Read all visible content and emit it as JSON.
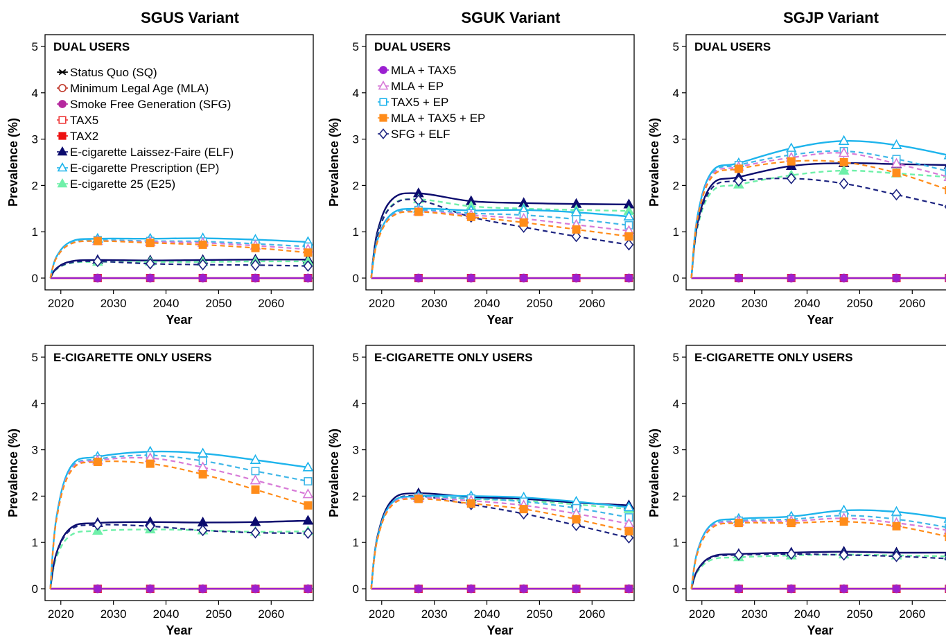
{
  "figure": {
    "column_titles": [
      "SGUS Variant",
      "SGUK Variant",
      "SGJP Variant"
    ],
    "row_labels": [
      "DUAL USERS",
      "E-CIGARETTE ONLY USERS"
    ],
    "xlabel": "Year",
    "ylabel": "Prevalence (%)"
  },
  "legends": {
    "left": [
      {
        "name": "Status Quo (SQ)",
        "color": "#000000",
        "marker": "x"
      },
      {
        "name": "Minimum Legal Age (MLA)",
        "color": "#c0392b",
        "marker": "circle-open"
      },
      {
        "name": "Smoke Free Generation (SFG)",
        "color": "#b5289e",
        "marker": "circle"
      },
      {
        "name": "TAX5",
        "color": "#ee3b3b",
        "marker": "square-open"
      },
      {
        "name": "TAX2",
        "color": "#ee1111",
        "marker": "square"
      },
      {
        "name": "E-cigarette Laissez-Faire (ELF)",
        "color": "#0b0b6e",
        "marker": "triangle"
      },
      {
        "name": "E-cigarette Prescription (EP)",
        "color": "#1eb4ec",
        "marker": "triangle-open"
      },
      {
        "name": "E-cigarette 25 (E25)",
        "color": "#6ff0a9",
        "marker": "triangle"
      }
    ],
    "middle": [
      {
        "name": "MLA + TAX5",
        "color": "#9b1fd1",
        "marker": "circle"
      },
      {
        "name": "MLA + EP",
        "color": "#d77ad7",
        "marker": "triangle-open"
      },
      {
        "name": "TAX5 + EP",
        "color": "#1eb4ec",
        "marker": "square-open"
      },
      {
        "name": "MLA + TAX5 + EP",
        "color": "#ff8c1a",
        "marker": "square"
      },
      {
        "name": "SFG + ELF",
        "color": "#1c2380",
        "marker": "diamond-open"
      }
    ]
  },
  "chart_data": [
    {
      "type": "line",
      "panel": "SGUS Variant - DUAL USERS",
      "x": [
        2018,
        2027,
        2037,
        2047,
        2057,
        2067
      ],
      "xlim": [
        2017,
        2068
      ],
      "ylim": [
        0,
        5
      ],
      "xticks": [
        2020,
        2030,
        2040,
        2050,
        2060
      ],
      "yticks": [
        0,
        1,
        2,
        3,
        4,
        5
      ],
      "series": [
        {
          "name": "Status Quo (SQ)",
          "values": [
            0,
            0,
            0,
            0,
            0,
            0
          ]
        },
        {
          "name": "TAX2",
          "values": [
            0,
            0,
            0,
            0,
            0,
            0
          ]
        },
        {
          "name": "MLA + TAX5",
          "values": [
            0,
            0,
            0,
            0,
            0,
            0
          ]
        },
        {
          "name": "E-cigarette Laissez-Faire (ELF)",
          "values": [
            0,
            0.39,
            0.38,
            0.39,
            0.4,
            0.4
          ]
        },
        {
          "name": "E-cigarette 25 (E25)",
          "values": [
            0,
            0.35,
            0.35,
            0.35,
            0.36,
            0.36
          ]
        },
        {
          "name": "SFG + ELF",
          "values": [
            0,
            0.36,
            0.31,
            0.29,
            0.28,
            0.26
          ]
        },
        {
          "name": "E-cigarette Prescription (EP)",
          "values": [
            0,
            0.85,
            0.85,
            0.86,
            0.83,
            0.78
          ]
        },
        {
          "name": "TAX5 + EP",
          "values": [
            0,
            0.82,
            0.8,
            0.79,
            0.74,
            0.68
          ]
        },
        {
          "name": "MLA + EP",
          "values": [
            0,
            0.8,
            0.78,
            0.76,
            0.7,
            0.62
          ]
        },
        {
          "name": "MLA + TAX5 + EP",
          "values": [
            0,
            0.8,
            0.76,
            0.72,
            0.65,
            0.55
          ]
        }
      ]
    },
    {
      "type": "line",
      "panel": "SGUK Variant - DUAL USERS",
      "x": [
        2018,
        2027,
        2037,
        2047,
        2057,
        2067
      ],
      "xlim": [
        2017,
        2068
      ],
      "ylim": [
        0,
        5
      ],
      "xticks": [
        2020,
        2030,
        2040,
        2050,
        2060
      ],
      "yticks": [
        0,
        1,
        2,
        3,
        4,
        5
      ],
      "series": [
        {
          "name": "Status Quo (SQ)",
          "values": [
            0,
            0,
            0,
            0,
            0,
            0
          ]
        },
        {
          "name": "TAX2",
          "values": [
            0,
            0,
            0,
            0,
            0,
            0
          ]
        },
        {
          "name": "MLA + TAX5",
          "values": [
            0,
            0,
            0,
            0,
            0,
            0
          ]
        },
        {
          "name": "E-cigarette Laissez-Faire (ELF)",
          "values": [
            0,
            1.83,
            1.66,
            1.62,
            1.6,
            1.59
          ]
        },
        {
          "name": "E-cigarette 25 (E25)",
          "values": [
            0,
            1.7,
            1.55,
            1.5,
            1.47,
            1.45
          ]
        },
        {
          "name": "SFG + ELF",
          "values": [
            0,
            1.68,
            1.32,
            1.1,
            0.9,
            0.72
          ]
        },
        {
          "name": "E-cigarette Prescription (EP)",
          "values": [
            0,
            1.5,
            1.46,
            1.47,
            1.42,
            1.33
          ]
        },
        {
          "name": "TAX5 + EP",
          "values": [
            0,
            1.47,
            1.4,
            1.36,
            1.27,
            1.14
          ]
        },
        {
          "name": "MLA + EP",
          "values": [
            0,
            1.44,
            1.36,
            1.28,
            1.15,
            1.02
          ]
        },
        {
          "name": "MLA + TAX5 + EP",
          "values": [
            0,
            1.43,
            1.32,
            1.2,
            1.05,
            0.9
          ]
        }
      ]
    },
    {
      "type": "line",
      "panel": "SGJP Variant - DUAL USERS",
      "x": [
        2018,
        2027,
        2037,
        2047,
        2057,
        2067
      ],
      "xlim": [
        2017,
        2068
      ],
      "ylim": [
        0,
        5
      ],
      "xticks": [
        2020,
        2030,
        2040,
        2050,
        2060
      ],
      "yticks": [
        0,
        1,
        2,
        3,
        4,
        5
      ],
      "series": [
        {
          "name": "Status Quo (SQ)",
          "values": [
            0,
            0,
            0,
            0,
            0,
            0
          ]
        },
        {
          "name": "TAX2",
          "values": [
            0,
            0,
            0,
            0,
            0,
            0
          ]
        },
        {
          "name": "MLA + TAX5",
          "values": [
            0,
            0,
            0,
            0,
            0,
            0
          ]
        },
        {
          "name": "E-cigarette Laissez-Faire (ELF)",
          "values": [
            0,
            2.18,
            2.42,
            2.48,
            2.46,
            2.44
          ]
        },
        {
          "name": "E-cigarette 25 (E25)",
          "values": [
            0,
            2.02,
            2.22,
            2.32,
            2.26,
            2.18
          ]
        },
        {
          "name": "SFG + ELF",
          "values": [
            0,
            2.1,
            2.15,
            2.04,
            1.8,
            1.54
          ]
        },
        {
          "name": "E-cigarette Prescription (EP)",
          "values": [
            0,
            2.48,
            2.8,
            2.96,
            2.87,
            2.65
          ]
        },
        {
          "name": "TAX5 + EP",
          "values": [
            0,
            2.44,
            2.66,
            2.74,
            2.57,
            2.3
          ]
        },
        {
          "name": "MLA + EP",
          "values": [
            0,
            2.4,
            2.6,
            2.7,
            2.47,
            2.18
          ]
        },
        {
          "name": "MLA + TAX5 + EP",
          "values": [
            0,
            2.36,
            2.52,
            2.5,
            2.27,
            1.9
          ]
        }
      ]
    },
    {
      "type": "line",
      "panel": "SGUS Variant - E-CIGARETTE ONLY USERS",
      "x": [
        2018,
        2027,
        2037,
        2047,
        2057,
        2067
      ],
      "xlim": [
        2017,
        2068
      ],
      "ylim": [
        0,
        5
      ],
      "xticks": [
        2020,
        2030,
        2040,
        2050,
        2060
      ],
      "yticks": [
        0,
        1,
        2,
        3,
        4,
        5
      ],
      "series": [
        {
          "name": "Status Quo (SQ)",
          "values": [
            0,
            0,
            0,
            0,
            0,
            0
          ]
        },
        {
          "name": "TAX2",
          "values": [
            0,
            0,
            0,
            0,
            0,
            0
          ]
        },
        {
          "name": "MLA + TAX5",
          "values": [
            0,
            0,
            0,
            0,
            0,
            0
          ]
        },
        {
          "name": "E-cigarette Laissez-Faire (ELF)",
          "values": [
            0,
            1.42,
            1.44,
            1.43,
            1.44,
            1.47
          ]
        },
        {
          "name": "E-cigarette 25 (E25)",
          "values": [
            0,
            1.25,
            1.28,
            1.26,
            1.23,
            1.24
          ]
        },
        {
          "name": "SFG + ELF",
          "values": [
            0,
            1.38,
            1.35,
            1.26,
            1.21,
            1.2
          ]
        },
        {
          "name": "E-cigarette Prescription (EP)",
          "values": [
            0,
            2.85,
            2.96,
            2.92,
            2.78,
            2.62
          ]
        },
        {
          "name": "TAX5 + EP",
          "values": [
            0,
            2.8,
            2.88,
            2.76,
            2.54,
            2.32
          ]
        },
        {
          "name": "MLA + EP",
          "values": [
            0,
            2.77,
            2.82,
            2.62,
            2.34,
            2.04
          ]
        },
        {
          "name": "MLA + TAX5 + EP",
          "values": [
            0,
            2.74,
            2.7,
            2.47,
            2.14,
            1.8
          ]
        }
      ]
    },
    {
      "type": "line",
      "panel": "SGUK Variant - E-CIGARETTE ONLY USERS",
      "x": [
        2018,
        2027,
        2037,
        2047,
        2057,
        2067
      ],
      "xlim": [
        2017,
        2068
      ],
      "ylim": [
        0,
        5
      ],
      "xticks": [
        2020,
        2030,
        2040,
        2050,
        2060
      ],
      "yticks": [
        0,
        1,
        2,
        3,
        4,
        5
      ],
      "series": [
        {
          "name": "Status Quo (SQ)",
          "values": [
            0,
            0,
            0,
            0,
            0,
            0
          ]
        },
        {
          "name": "TAX2",
          "values": [
            0,
            0,
            0,
            0,
            0,
            0
          ]
        },
        {
          "name": "MLA + TAX5",
          "values": [
            0,
            0,
            0,
            0,
            0,
            0
          ]
        },
        {
          "name": "E-cigarette Laissez-Faire (ELF)",
          "values": [
            0,
            2.06,
            1.98,
            1.94,
            1.86,
            1.8
          ]
        },
        {
          "name": "E-cigarette 25 (E25)",
          "values": [
            0,
            2.0,
            1.94,
            1.9,
            1.82,
            1.72
          ]
        },
        {
          "name": "SFG + ELF",
          "values": [
            0,
            2.0,
            1.82,
            1.62,
            1.37,
            1.1
          ]
        },
        {
          "name": "E-cigarette Prescription (EP)",
          "values": [
            0,
            2.0,
            2.0,
            1.97,
            1.88,
            1.76
          ]
        },
        {
          "name": "TAX5 + EP",
          "values": [
            0,
            1.97,
            1.95,
            1.88,
            1.74,
            1.54
          ]
        },
        {
          "name": "MLA + EP",
          "values": [
            0,
            1.96,
            1.9,
            1.8,
            1.62,
            1.4
          ]
        },
        {
          "name": "MLA + TAX5 + EP",
          "values": [
            0,
            1.94,
            1.84,
            1.72,
            1.5,
            1.24
          ]
        }
      ]
    },
    {
      "type": "line",
      "panel": "SGJP Variant - E-CIGARETTE ONLY USERS",
      "x": [
        2018,
        2027,
        2037,
        2047,
        2057,
        2067
      ],
      "xlim": [
        2017,
        2068
      ],
      "ylim": [
        0,
        5
      ],
      "xticks": [
        2020,
        2030,
        2040,
        2050,
        2060
      ],
      "yticks": [
        0,
        1,
        2,
        3,
        4,
        5
      ],
      "series": [
        {
          "name": "Status Quo (SQ)",
          "values": [
            0,
            0,
            0,
            0,
            0,
            0
          ]
        },
        {
          "name": "TAX2",
          "values": [
            0,
            0,
            0,
            0,
            0,
            0
          ]
        },
        {
          "name": "MLA + TAX5",
          "values": [
            0,
            0,
            0,
            0,
            0,
            0
          ]
        },
        {
          "name": "E-cigarette Laissez-Faire (ELF)",
          "values": [
            0,
            0.75,
            0.78,
            0.8,
            0.78,
            0.78
          ]
        },
        {
          "name": "E-cigarette 25 (E25)",
          "values": [
            0,
            0.68,
            0.72,
            0.74,
            0.72,
            0.7
          ]
        },
        {
          "name": "SFG + ELF",
          "values": [
            0,
            0.73,
            0.75,
            0.73,
            0.7,
            0.65
          ]
        },
        {
          "name": "E-cigarette Prescription (EP)",
          "values": [
            0,
            1.51,
            1.56,
            1.69,
            1.66,
            1.51
          ]
        },
        {
          "name": "TAX5 + EP",
          "values": [
            0,
            1.47,
            1.5,
            1.58,
            1.5,
            1.32
          ]
        },
        {
          "name": "MLA + EP",
          "values": [
            0,
            1.45,
            1.46,
            1.52,
            1.42,
            1.26
          ]
        },
        {
          "name": "MLA + TAX5 + EP",
          "values": [
            0,
            1.42,
            1.42,
            1.45,
            1.35,
            1.12
          ]
        }
      ]
    }
  ]
}
